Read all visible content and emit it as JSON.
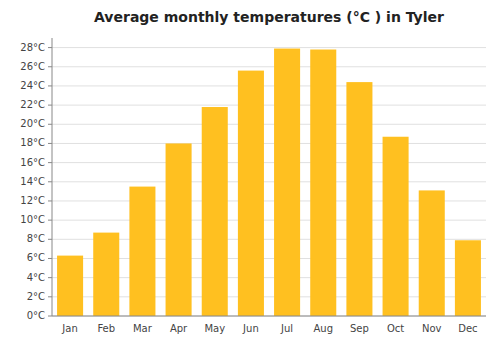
{
  "chart_data": {
    "type": "bar",
    "title": "Average monthly temperatures (°C ) in Tyler",
    "categories": [
      "Jan",
      "Feb",
      "Mar",
      "Apr",
      "May",
      "Jun",
      "Jul",
      "Aug",
      "Sep",
      "Oct",
      "Nov",
      "Dec"
    ],
    "values": [
      6.3,
      8.7,
      13.5,
      18.0,
      21.8,
      25.6,
      27.9,
      27.8,
      24.4,
      18.7,
      13.1,
      7.9
    ],
    "color": "#FFC020",
    "ylim": [
      0,
      29
    ],
    "yticks": [
      {
        "value": 0,
        "label": "0°C"
      },
      {
        "value": 2,
        "label": "2°C"
      },
      {
        "value": 4,
        "label": "4°C"
      },
      {
        "value": 6,
        "label": "6°C"
      },
      {
        "value": 8,
        "label": "8°C"
      },
      {
        "value": 10,
        "label": "10°C"
      },
      {
        "value": 12,
        "label": "12°C"
      },
      {
        "value": 14,
        "label": "14°C"
      },
      {
        "value": 16,
        "label": "16°C"
      },
      {
        "value": 18,
        "label": "18°C"
      },
      {
        "value": 20,
        "label": "20°C"
      },
      {
        "value": 22,
        "label": "22°C"
      },
      {
        "value": 24,
        "label": "24°C"
      },
      {
        "value": 26,
        "label": "26°C"
      },
      {
        "value": 28,
        "label": "28°C"
      }
    ],
    "grid": true
  }
}
